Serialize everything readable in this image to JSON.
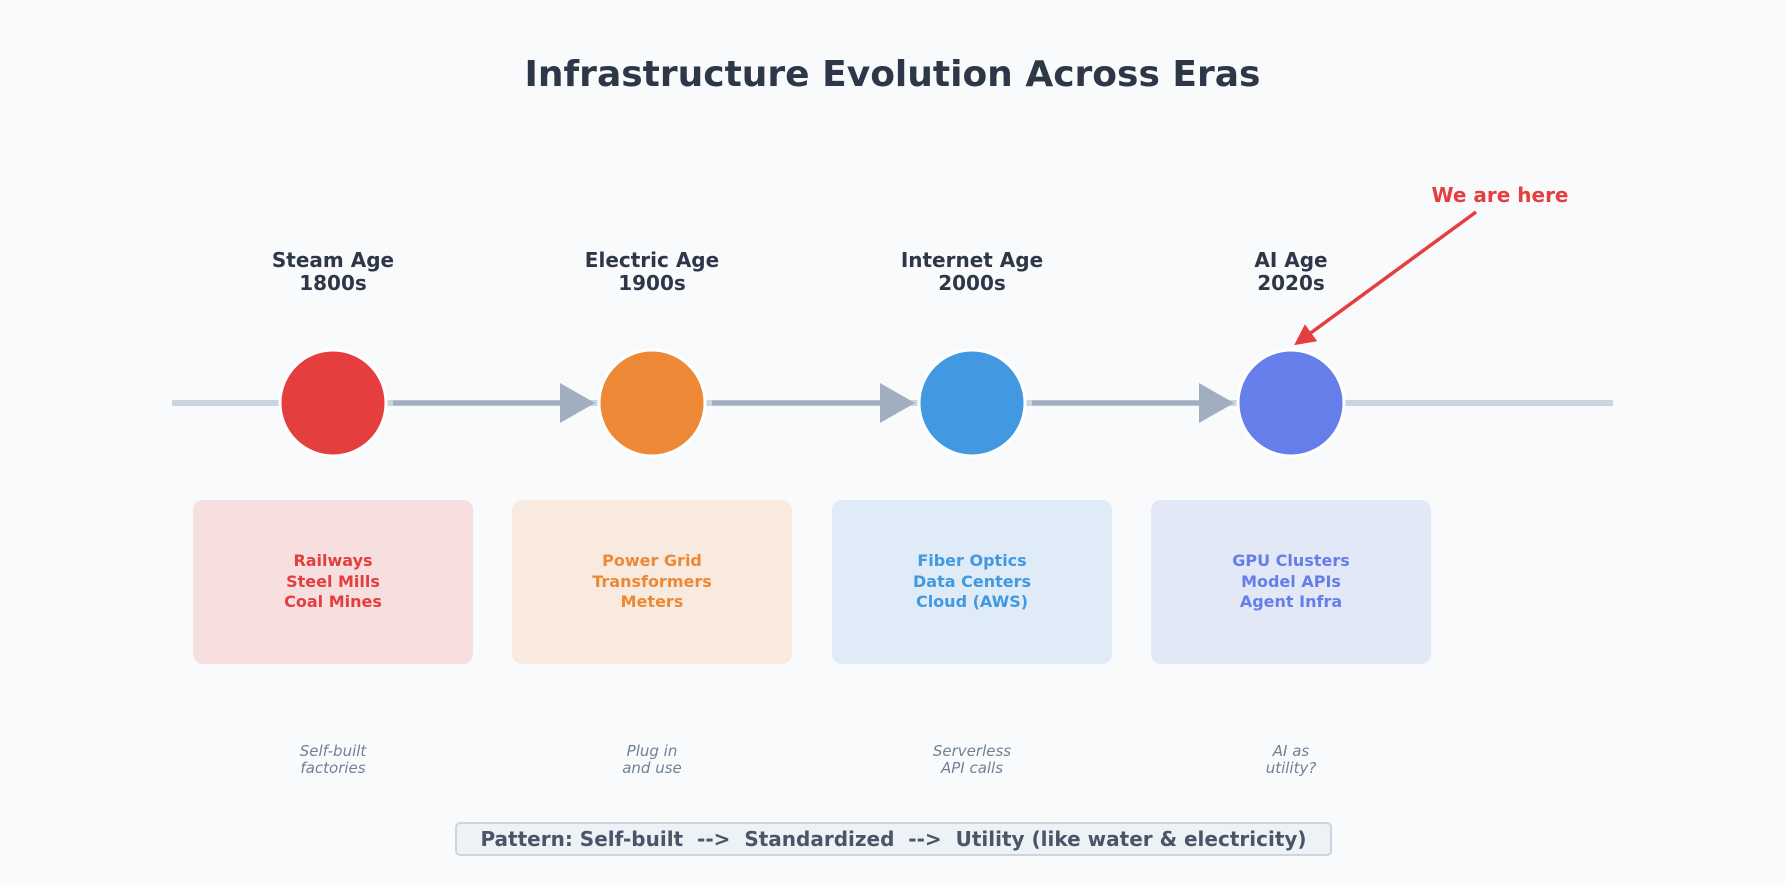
{
  "title": "Infrastructure Evolution Across Eras",
  "marker": {
    "label": "We are here",
    "color": "#e53e3e"
  },
  "eras": [
    {
      "name": "Steam Age",
      "period": "1800s",
      "color": "#e53e3e",
      "box_bg": "#f7dfe0",
      "items": [
        "Railways",
        "Steel Mills",
        "Coal Mines"
      ],
      "caption": [
        "Self-built",
        "factories"
      ]
    },
    {
      "name": "Electric Age",
      "period": "1900s",
      "color": "#ed8936",
      "box_bg": "#f9eadf",
      "items": [
        "Power Grid",
        "Transformers",
        "Meters"
      ],
      "caption": [
        "Plug in",
        "and use"
      ]
    },
    {
      "name": "Internet Age",
      "period": "2000s",
      "color": "#4299e1",
      "box_bg": "#dfebf6",
      "items": [
        "Fiber Optics",
        "Data Centers",
        "Cloud (AWS)"
      ],
      "caption": [
        "Serverless",
        "API calls"
      ]
    },
    {
      "name": "AI Age",
      "period": "2020s",
      "color": "#667eea",
      "box_bg": "#e3e8f7",
      "items": [
        "GPU Clusters",
        "Model APIs",
        "Agent Infra"
      ],
      "caption": [
        "AI as",
        "utility?"
      ]
    }
  ],
  "pattern": "Pattern: Self-built  -->  Standardized  -->  Utility (like water & electricity)"
}
